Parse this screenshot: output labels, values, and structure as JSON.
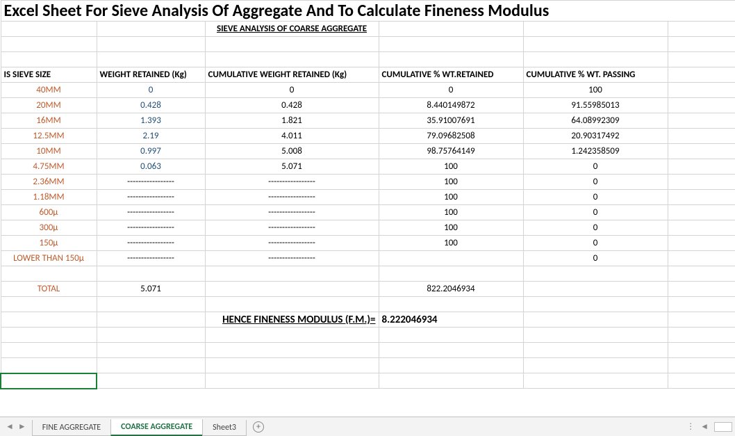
{
  "title": "Excel Sheet For Sieve Analysis Of Aggregate And To Calculate Fineness Modulus",
  "subtitle": "SIEVE ANALYSIS OF COARSE AGGREGATE",
  "columns": {
    "c1": "IS SIEVE SIZE",
    "c2": "WEIGHT RETAINED (Kg)",
    "c3": "CUMULATIVE WEIGHT RETAINED (Kg)",
    "c4": "CUMULATIVE % WT.RETAINED",
    "c5": "CUMULATIVE %  WT. PASSING"
  },
  "rows": [
    {
      "sieve": "40MM",
      "wt": "0",
      "cwt": "0",
      "cret": "0",
      "cpass": "100"
    },
    {
      "sieve": "20MM",
      "wt": "0.428",
      "cwt": "0.428",
      "cret": "8.440149872",
      "cpass": "91.55985013"
    },
    {
      "sieve": "16MM",
      "wt": "1.393",
      "cwt": "1.821",
      "cret": "35.91007691",
      "cpass": "64.08992309"
    },
    {
      "sieve": "12.5MM",
      "wt": "2.19",
      "cwt": "4.011",
      "cret": "79.09682508",
      "cpass": "20.90317492"
    },
    {
      "sieve": "10MM",
      "wt": "0.997",
      "cwt": "5.008",
      "cret": "98.75764149",
      "cpass": "1.242358509"
    },
    {
      "sieve": "4.75MM",
      "wt": "0.063",
      "cwt": "5.071",
      "cret": "100",
      "cpass": "0"
    },
    {
      "sieve": "2.36MM",
      "wt": "-----------------",
      "cwt": "-----------------",
      "cret": "100",
      "cpass": "0"
    },
    {
      "sieve": "1.18MM",
      "wt": "-----------------",
      "cwt": "-----------------",
      "cret": "100",
      "cpass": "0"
    },
    {
      "sieve": "600µ",
      "wt": "-----------------",
      "cwt": "-----------------",
      "cret": "100",
      "cpass": "0"
    },
    {
      "sieve": "300µ",
      "wt": "-----------------",
      "cwt": "-----------------",
      "cret": "100",
      "cpass": "0"
    },
    {
      "sieve": "150µ",
      "wt": "-----------------",
      "cwt": "-----------------",
      "cret": "100",
      "cpass": "0"
    },
    {
      "sieve": "LOWER THAN 150µ",
      "wt": "-----------------",
      "cwt": "-----------------",
      "cret": "",
      "cpass": "0"
    }
  ],
  "total": {
    "label": "TOTAL",
    "wt": "5.071",
    "cret": "822.2046934"
  },
  "fm": {
    "label": "HENCE FINENESS MODULUS (F.M.)=",
    "value": "8.222046934"
  },
  "tabs": {
    "items": [
      "FINE AGGREGATE",
      "COARSE AGGREGATE",
      "Sheet3"
    ],
    "active_index": 1
  },
  "colors": {
    "sieve_label": "#c05a2a",
    "weight_value": "#1f4e79",
    "grid_border": "#d4d4d4",
    "tab_active": "#217346",
    "selection": "#1a7f37"
  }
}
